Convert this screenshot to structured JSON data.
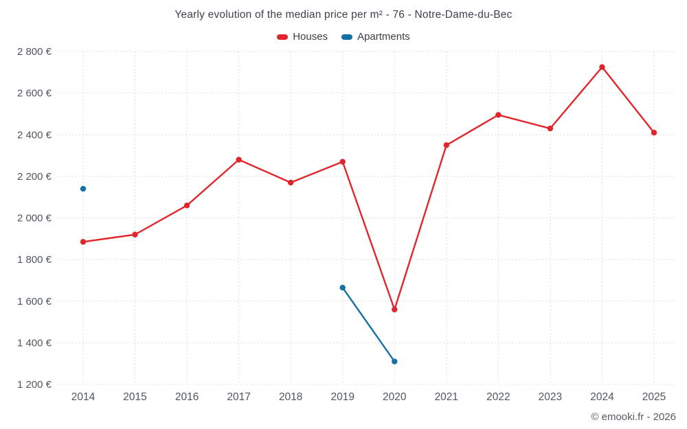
{
  "chart": {
    "credit": "© emooki.fr - 2026"
  },
  "chart_data": {
    "type": "line",
    "title": "Yearly evolution of the median price per m² - 76 - Notre-Dame-du-Bec",
    "x": [
      2014,
      2015,
      2016,
      2017,
      2018,
      2019,
      2020,
      2021,
      2022,
      2023,
      2024,
      2025
    ],
    "series": [
      {
        "name": "Houses",
        "color": "#e0262d",
        "points": [
          [
            2014,
            1885
          ],
          [
            2015,
            1920
          ],
          [
            2016,
            2060
          ],
          [
            2017,
            2280
          ],
          [
            2018,
            2170
          ],
          [
            2019,
            2270
          ],
          [
            2020,
            1560
          ],
          [
            2021,
            2350
          ],
          [
            2022,
            2495
          ],
          [
            2023,
            2430
          ],
          [
            2024,
            2725
          ],
          [
            2025,
            2410
          ]
        ]
      },
      {
        "name": "Apartments",
        "color": "#1471a5",
        "points": [
          [
            2014,
            2140
          ],
          [
            2019,
            1665
          ],
          [
            2020,
            1310
          ]
        ]
      }
    ],
    "ylim": [
      1200,
      2800
    ],
    "ytick_step": 200,
    "ylabel_suffix": " €",
    "grid": "dotted",
    "legend_position": "top"
  }
}
